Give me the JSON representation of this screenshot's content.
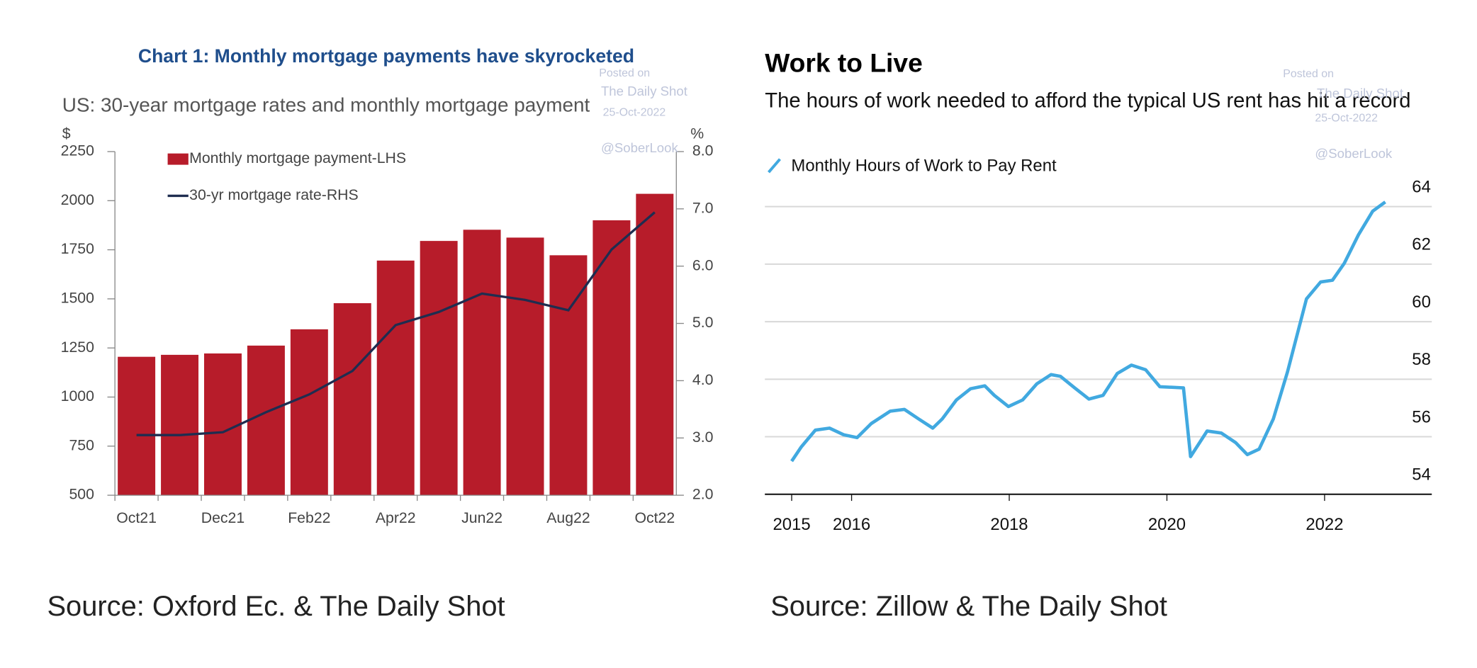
{
  "chart_data": [
    {
      "type": "bar",
      "title": "Chart 1: Monthly mortgage payments have skyrocketed",
      "subtitle": "US: 30-year mortgage rates and monthly mortgage payment",
      "ylabel": "$",
      "y2label": "%",
      "categories": [
        "Oct21",
        null,
        "Dec21",
        null,
        "Feb22",
        null,
        "Apr22",
        null,
        "Jun22",
        null,
        "Aug22",
        null,
        "Oct22"
      ],
      "series": [
        {
          "name": "Monthly mortgage payment-LHS",
          "type": "bar",
          "color": "#b71c2a",
          "values": [
            1205,
            1215,
            1222,
            1262,
            1345,
            1478,
            1695,
            1795,
            1852,
            1812,
            1722,
            1900,
            2035
          ]
        },
        {
          "name": "30-yr mortgage rate-RHS",
          "type": "line",
          "axis": "y2",
          "color": "#1f2d50",
          "values": [
            3.05,
            3.05,
            3.1,
            3.45,
            3.76,
            4.17,
            4.97,
            5.2,
            5.52,
            5.41,
            5.23,
            6.29,
            6.94
          ]
        }
      ],
      "ylim": [
        500,
        2250
      ],
      "yticks": [
        500,
        750,
        1000,
        1250,
        1500,
        1750,
        2000,
        2250
      ],
      "y2lim": [
        2,
        8
      ],
      "y2ticks": [
        {
          "value": 2,
          "label": "2.0"
        },
        {
          "value": 3,
          "label": "3.0"
        },
        {
          "value": 4,
          "label": "4.0"
        },
        {
          "value": 5,
          "label": "5.0"
        },
        {
          "value": 6,
          "label": "6.0"
        },
        {
          "value": 7,
          "label": "7.0"
        },
        {
          "value": 8,
          "label": "8.0"
        }
      ],
      "annotations": [
        "Posted on",
        "The Daily Shot",
        "25-Oct-2022",
        "@SoberLook"
      ],
      "source": "Source: Oxford Ec. & The Daily Shot"
    },
    {
      "type": "line",
      "title": "Work to Live",
      "subtitle": "The hours of work needed to afford the typical US rent has hit a record",
      "x": [
        2015.24,
        2015.36,
        2015.54,
        2015.72,
        2015.9,
        2016.07,
        2016.25,
        2016.49,
        2016.67,
        2016.85,
        2017.03,
        2017.15,
        2017.33,
        2017.51,
        2017.69,
        2017.81,
        2017.99,
        2018.17,
        2018.35,
        2018.53,
        2018.65,
        2018.83,
        2019.01,
        2019.19,
        2019.37,
        2019.55,
        2019.73,
        2019.91,
        2020.21,
        2020.3,
        2020.51,
        2020.69,
        2020.87,
        2021.02,
        2021.17,
        2021.35,
        2021.53,
        2021.77,
        2021.95,
        2022.1,
        2022.25,
        2022.43,
        2022.61,
        2022.77
      ],
      "series": [
        {
          "name": "Monthly Hours of Work to Pay Rent",
          "color": "#41a9e0",
          "values": [
            55.15,
            55.64,
            56.23,
            56.3,
            56.07,
            55.97,
            56.46,
            56.89,
            56.95,
            56.62,
            56.3,
            56.62,
            57.28,
            57.67,
            57.77,
            57.44,
            57.05,
            57.28,
            57.84,
            58.16,
            58.1,
            57.7,
            57.31,
            57.44,
            58.2,
            58.49,
            58.33,
            57.74,
            57.7,
            55.31,
            56.2,
            56.13,
            55.8,
            55.38,
            55.57,
            56.62,
            58.26,
            60.79,
            61.38,
            61.44,
            62.03,
            63.02,
            63.84,
            64.16
          ]
        }
      ],
      "xlim": [
        2014.9,
        2023.36
      ],
      "xticks": [
        {
          "value": 2015.24,
          "label": "2015"
        },
        2016,
        2018,
        2020,
        2022
      ],
      "ylim": [
        54,
        64.8
      ],
      "yticks": [
        54,
        56,
        58,
        60,
        62,
        64
      ],
      "grid": true,
      "annotations": [
        "Posted on",
        "The Daily Shot",
        "25-Oct-2022",
        "@SoberLook"
      ],
      "source": "Source: Zillow & The Daily Shot"
    }
  ]
}
